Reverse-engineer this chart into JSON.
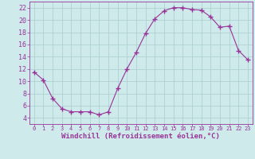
{
  "x": [
    0,
    1,
    2,
    3,
    4,
    5,
    6,
    7,
    8,
    9,
    10,
    11,
    12,
    13,
    14,
    15,
    16,
    17,
    18,
    19,
    20,
    21,
    22,
    23
  ],
  "y": [
    11.5,
    10.2,
    7.2,
    5.5,
    5.0,
    5.0,
    5.0,
    4.5,
    5.0,
    8.8,
    12.0,
    14.7,
    17.8,
    20.2,
    21.5,
    22.0,
    22.0,
    21.7,
    21.6,
    20.5,
    18.8,
    19.0,
    15.0,
    13.5
  ],
  "line_color": "#993399",
  "marker": "P",
  "marker_size": 2.5,
  "xlabel": "Windchill (Refroidissement éolien,°C)",
  "xlabel_fontsize": 6.5,
  "ylim": [
    3,
    23
  ],
  "xlim": [
    -0.5,
    23.5
  ],
  "yticks": [
    4,
    6,
    8,
    10,
    12,
    14,
    16,
    18,
    20,
    22
  ],
  "xticks": [
    0,
    1,
    2,
    3,
    4,
    5,
    6,
    7,
    8,
    9,
    10,
    11,
    12,
    13,
    14,
    15,
    16,
    17,
    18,
    19,
    20,
    21,
    22,
    23
  ],
  "bg_color": "#ceeaea",
  "grid_color": "#aacccc",
  "tick_color": "#993399",
  "label_color": "#993399",
  "tick_fontsize_x": 5.0,
  "tick_fontsize_y": 6.0
}
